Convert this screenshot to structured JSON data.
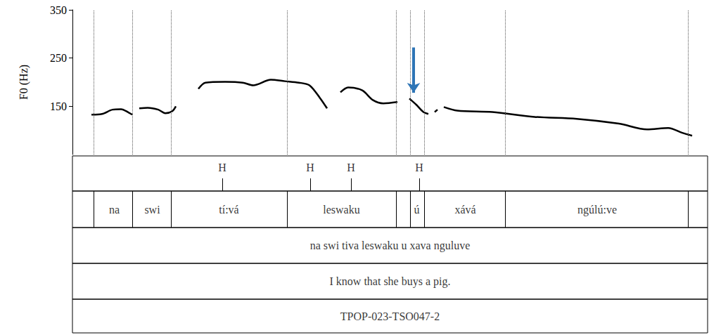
{
  "chart_data": {
    "type": "line",
    "ylabel": "F0 (Hz)",
    "ylim": [
      50,
      350
    ],
    "yticks": [
      150,
      250,
      350
    ],
    "xlim": [
      0,
      1.806
    ],
    "tick_labels": "y",
    "grid": false,
    "color": "#000000",
    "x": [
      0.054,
      0.084,
      0.114,
      0.138,
      0.16,
      0.17,
      0.18,
      0.19,
      0.214,
      0.244,
      0.264,
      0.284,
      0.294,
      0.326,
      0.358,
      0.378,
      0.434,
      0.484,
      0.514,
      0.564,
      0.604,
      0.644,
      0.674,
      0.704,
      0.724,
      0.743,
      0.762,
      0.784,
      0.824,
      0.854,
      0.884,
      0.924,
      0.941,
      0.958,
      0.978,
      0.998,
      1.012,
      1.021,
      1.03,
      1.038,
      1.047,
      1.056,
      1.094,
      1.194,
      1.314,
      1.434,
      1.554,
      1.634,
      1.694,
      1.734,
      1.762
    ],
    "values": [
      132.6,
      134,
      143,
      144,
      137,
      132.6,
      null,
      145.7,
      147,
      143,
      135.5,
      140,
      150,
      null,
      186,
      199,
      200.7,
      199,
      193.5,
      205,
      202,
      199,
      193.5,
      167,
      145.7,
      null,
      179,
      189,
      183,
      163,
      156,
      158.7,
      null,
      166,
      153,
      138,
      134,
      null,
      138,
      143,
      null,
      148.5,
      141,
      138,
      128,
      124,
      114,
      102,
      105,
      95,
      89
    ],
    "tones": [
      {
        "label": "H",
        "x": 0.426
      },
      {
        "label": "H",
        "x": 0.676
      },
      {
        "label": "H",
        "x": 0.792
      },
      {
        "label": "H",
        "x": 0.986
      }
    ],
    "words": [
      {
        "label": "na",
        "start": 0.064,
        "end": 0.174
      },
      {
        "label": "swi",
        "start": 0.174,
        "end": 0.28
      },
      {
        "label": "tí:vá",
        "start": 0.28,
        "end": 0.61
      },
      {
        "label": "leswaku",
        "start": 0.61,
        "end": 0.92
      },
      {
        "label": "ú",
        "start": 0.958,
        "end": 1.0
      },
      {
        "label": "xává",
        "start": 1.0,
        "end": 1.234
      },
      {
        "label": "ngúlú:ve",
        "start": 1.234,
        "end": 1.75
      }
    ],
    "sentence": "na swi tiva leswaku u xava nguluve",
    "translation": "I know that she buys a pig.",
    "id": "TPOP-023-TSO047-2",
    "arrow": {
      "x": 0.97,
      "from": 272,
      "to": 178,
      "color": "#2e75b6"
    }
  }
}
